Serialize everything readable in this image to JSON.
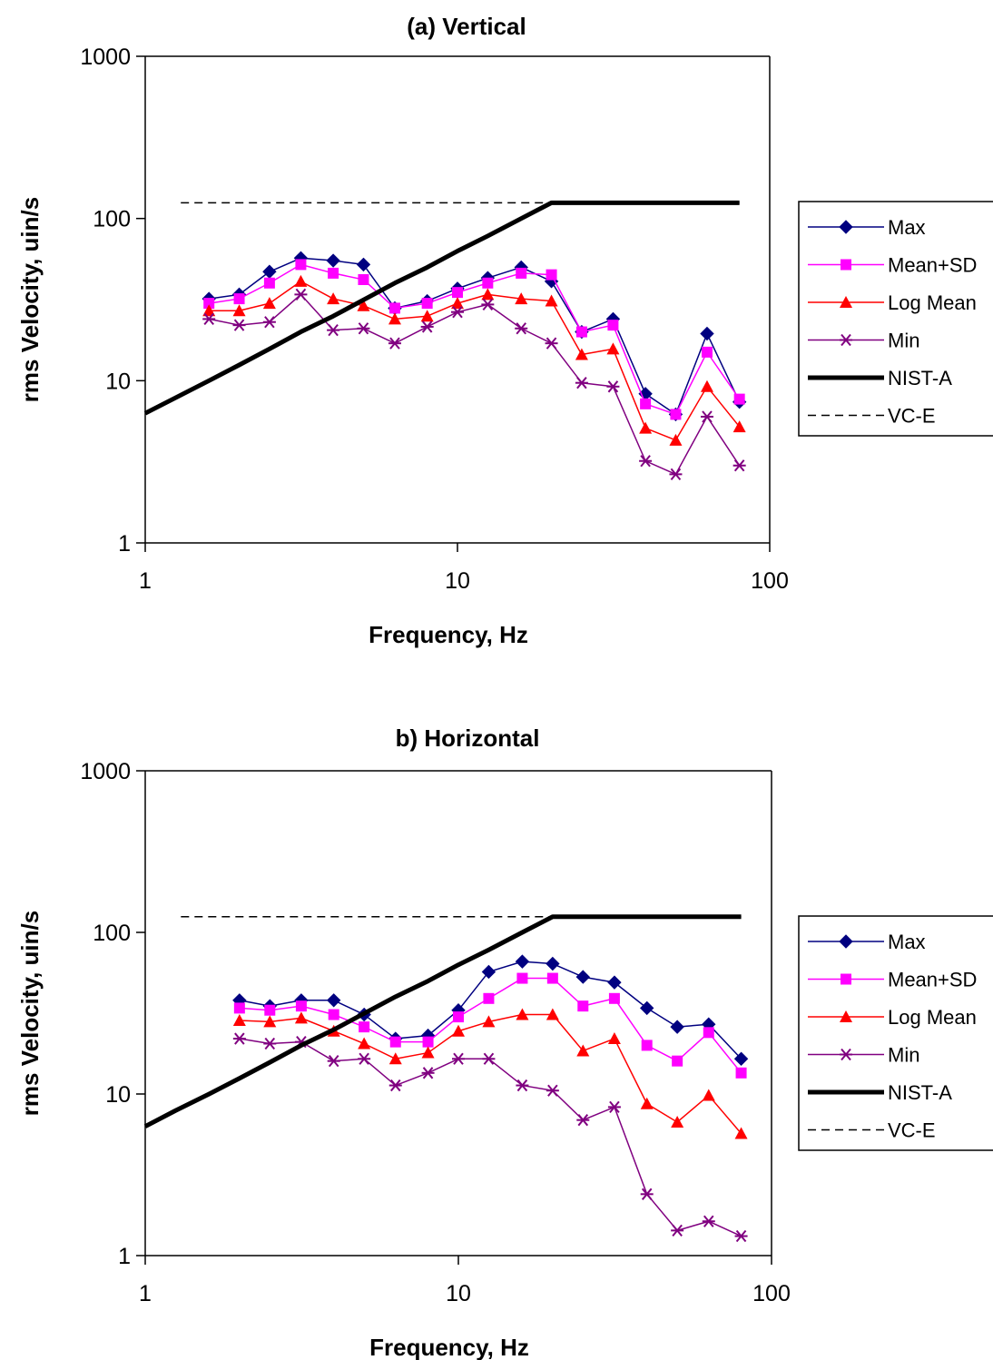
{
  "chart_data": [
    {
      "type": "line",
      "title": "(a) Vertical",
      "xlabel": "Frequency, Hz",
      "ylabel": "rms Velocity, uin/s",
      "x_scale": "log",
      "y_scale": "log",
      "xlim": [
        1,
        100
      ],
      "ylim": [
        1,
        1000
      ],
      "x_ticks": [
        "1",
        "10",
        "100"
      ],
      "y_ticks": [
        "1",
        "10",
        "100",
        "1000"
      ],
      "grid": false,
      "legend_position": "right",
      "series": [
        {
          "name": "Max",
          "color": "#000080",
          "marker": "diamond",
          "x": [
            1.6,
            2,
            2.5,
            3.15,
            4,
            5,
            6.3,
            8,
            10,
            12.5,
            16,
            20,
            25,
            31.5,
            40,
            50,
            63,
            80
          ],
          "y": [
            32,
            34,
            47,
            57,
            55,
            52,
            28,
            31,
            37,
            43,
            50,
            41,
            20,
            24,
            8.3,
            6.2,
            19.5,
            7.4
          ]
        },
        {
          "name": "Mean+SD",
          "color": "#ff00ff",
          "marker": "square",
          "x": [
            1.6,
            2,
            2.5,
            3.15,
            4,
            5,
            6.3,
            8,
            10,
            12.5,
            16,
            20,
            25,
            31.5,
            40,
            50,
            63,
            80
          ],
          "y": [
            30,
            32,
            40,
            52,
            46,
            42,
            28,
            30,
            35,
            40,
            46,
            45,
            20,
            22,
            7.2,
            6.2,
            15,
            7.7
          ]
        },
        {
          "name": "Log Mean",
          "color": "#ff0000",
          "marker": "triangle",
          "x": [
            1.6,
            2,
            2.5,
            3.15,
            4,
            5,
            6.3,
            8,
            10,
            12.5,
            16,
            20,
            25,
            31.5,
            40,
            50,
            63,
            80
          ],
          "y": [
            27,
            27,
            30,
            41,
            32,
            29,
            24,
            25,
            30,
            34,
            32,
            31,
            14.5,
            15.7,
            5.1,
            4.3,
            9.2,
            5.2
          ]
        },
        {
          "name": "Min",
          "color": "#800080",
          "marker": "asterisk",
          "x": [
            1.6,
            2,
            2.5,
            3.15,
            4,
            5,
            6.3,
            8,
            10,
            12.5,
            16,
            20,
            25,
            31.5,
            40,
            50,
            63,
            80
          ],
          "y": [
            24,
            22,
            23,
            34,
            20.5,
            21,
            17,
            21.5,
            26.5,
            29.5,
            21,
            17,
            9.7,
            9.2,
            3.2,
            2.65,
            6,
            3
          ]
        },
        {
          "name": "NIST-A",
          "color": "#000000",
          "marker": "none",
          "style": "thick",
          "x": [
            1,
            1.6,
            2,
            2.5,
            3.15,
            4,
            5,
            6.3,
            8,
            10,
            12.5,
            16,
            20,
            25,
            31.5,
            40,
            50,
            63,
            80
          ],
          "y": [
            6.3,
            10,
            12.5,
            15.7,
            20,
            25,
            31.5,
            40,
            50,
            63,
            78,
            100,
            125,
            125,
            125,
            125,
            125,
            125,
            125
          ]
        },
        {
          "name": "VC-E",
          "color": "#000000",
          "marker": "none",
          "style": "dashed",
          "x": [
            1.3,
            80
          ],
          "y": [
            125,
            125
          ]
        }
      ]
    },
    {
      "type": "line",
      "title": "b) Horizontal",
      "xlabel": "Frequency, Hz",
      "ylabel": "rms Velocity, uin/s",
      "x_scale": "log",
      "y_scale": "log",
      "xlim": [
        1,
        100
      ],
      "ylim": [
        1,
        1000
      ],
      "x_ticks": [
        "1",
        "10",
        "100"
      ],
      "y_ticks": [
        "1",
        "10",
        "100",
        "1000"
      ],
      "grid": false,
      "legend_position": "right",
      "series": [
        {
          "name": "Max",
          "color": "#000080",
          "marker": "diamond",
          "x": [
            2,
            2.5,
            3.15,
            4,
            5,
            6.3,
            8,
            10,
            12.5,
            16,
            20,
            25,
            31.5,
            40,
            50,
            63,
            80
          ],
          "y": [
            38,
            35,
            38,
            38,
            31,
            22,
            23,
            33,
            57,
            66,
            64,
            53,
            49,
            34,
            26,
            27,
            16.5
          ]
        },
        {
          "name": "Mean+SD",
          "color": "#ff00ff",
          "marker": "square",
          "x": [
            2,
            2.5,
            3.15,
            4,
            5,
            6.3,
            8,
            10,
            12.5,
            16,
            20,
            25,
            31.5,
            40,
            50,
            63,
            80
          ],
          "y": [
            34,
            33,
            35,
            31,
            26,
            21,
            21,
            30,
            39,
            52,
            52,
            35,
            39,
            20,
            16,
            24,
            13.5
          ]
        },
        {
          "name": "Log Mean",
          "color": "#ff0000",
          "marker": "triangle",
          "x": [
            2,
            2.5,
            3.15,
            4,
            5,
            6.3,
            8,
            10,
            12.5,
            16,
            20,
            25,
            31.5,
            40,
            50,
            63,
            80
          ],
          "y": [
            28.5,
            28,
            29.5,
            24.5,
            20.5,
            16.5,
            18,
            24.5,
            28,
            31,
            31,
            18.5,
            22,
            8.7,
            6.7,
            9.8,
            5.7
          ]
        },
        {
          "name": "Min",
          "color": "#800080",
          "marker": "asterisk",
          "x": [
            2,
            2.5,
            3.15,
            4,
            5,
            6.3,
            8,
            10,
            12.5,
            16,
            20,
            25,
            31.5,
            40,
            50,
            63,
            80
          ],
          "y": [
            22,
            20.5,
            21,
            16,
            16.5,
            11.3,
            13.5,
            16.5,
            16.5,
            11.3,
            10.5,
            6.9,
            8.3,
            2.4,
            1.43,
            1.63,
            1.32
          ]
        },
        {
          "name": "NIST-A",
          "color": "#000000",
          "marker": "none",
          "style": "thick",
          "x": [
            1,
            1.25,
            1.6,
            2,
            2.5,
            3.15,
            4,
            5,
            6.3,
            8,
            10,
            12.5,
            16,
            20,
            25,
            31.5,
            40,
            50,
            63,
            80
          ],
          "y": [
            6.3,
            7.9,
            10,
            12.5,
            15.7,
            20,
            25,
            31.5,
            40,
            50,
            63,
            78,
            100,
            125,
            125,
            125,
            125,
            125,
            125,
            125
          ]
        },
        {
          "name": "VC-E",
          "color": "#000000",
          "marker": "none",
          "style": "dashed",
          "x": [
            1.3,
            80
          ],
          "y": [
            125,
            125
          ]
        }
      ]
    }
  ]
}
